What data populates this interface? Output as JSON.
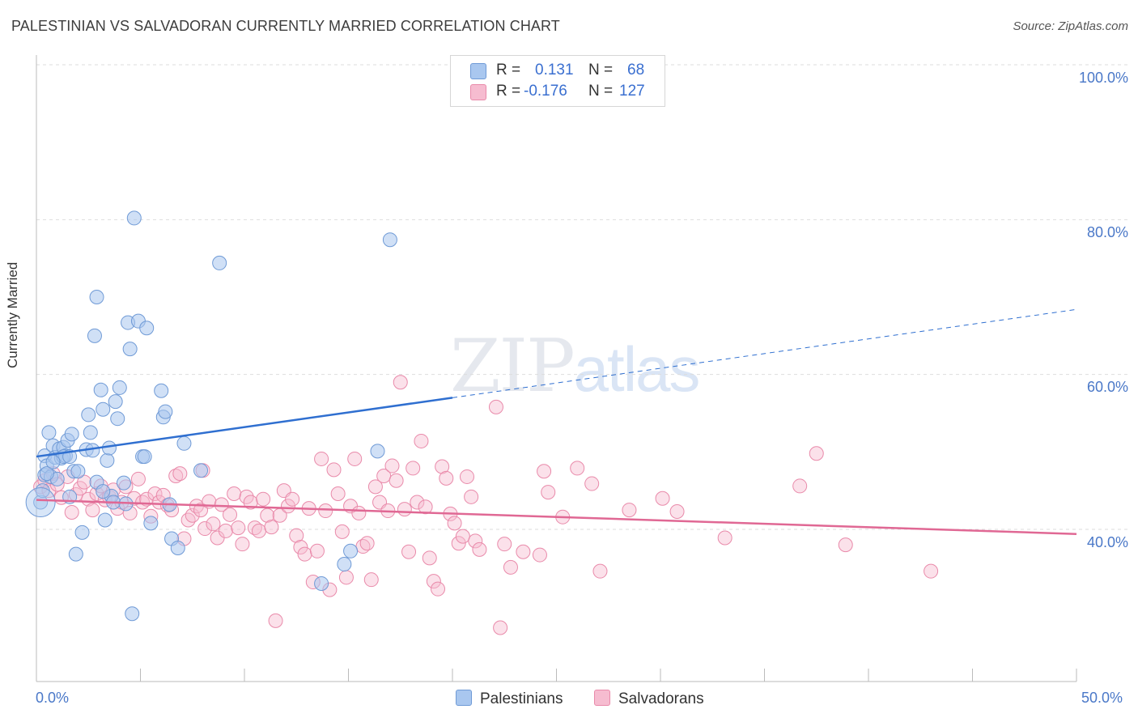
{
  "title": "PALESTINIAN VS SALVADORAN CURRENTLY MARRIED CORRELATION CHART",
  "source": "Source: ZipAtlas.com",
  "watermark": {
    "zip": "ZIP",
    "atlas": "atlas"
  },
  "legend": {
    "rows": [
      {
        "r_label": "R =",
        "r_value": "0.131",
        "n_label": "N =",
        "n_value": "68"
      },
      {
        "r_label": "R =",
        "r_value": "-0.176",
        "n_label": "N =",
        "n_value": "127"
      }
    ]
  },
  "bottom_legend": {
    "series1": "Palestinians",
    "series2": "Salvadorans"
  },
  "colors": {
    "series1_fill": "#a9c7ef",
    "series1_stroke": "#6f9ad6",
    "series1_line": "#2f6fd0",
    "series2_fill": "#f6bcd0",
    "series2_stroke": "#e98aaa",
    "series2_line": "#e06894",
    "tick_text": "#4a78c8",
    "grid": "#dddddd"
  },
  "chart_data": {
    "type": "scatter",
    "title": "PALESTINIAN VS SALVADORAN CURRENTLY MARRIED CORRELATION CHART",
    "ylabel": "Currently Married",
    "xlabel": "",
    "xlim": [
      0,
      50
    ],
    "ylim": [
      20,
      102
    ],
    "x_tick_labels": [
      "0.0%",
      "50.0%"
    ],
    "y_ticks": [
      40,
      60,
      80,
      100
    ],
    "y_tick_labels": [
      "40.0%",
      "60.0%",
      "80.0%",
      "100.0%"
    ],
    "grid": "horizontal dashed",
    "legend_position": "top-center",
    "series": [
      {
        "name": "Palestinians",
        "stats": {
          "R": 0.131,
          "N": 68
        },
        "trend": {
          "x0": 0,
          "y0": 49.4,
          "x1": 50,
          "y1": 68.4,
          "solid_until": 20
        },
        "points": [
          [
            0.2,
            43.5
          ],
          [
            0.3,
            45
          ],
          [
            0.4,
            49.5
          ],
          [
            0.4,
            47
          ],
          [
            0.5,
            48.2
          ],
          [
            0.6,
            52.5
          ],
          [
            0.7,
            46.8
          ],
          [
            0.8,
            50.8
          ],
          [
            0.9,
            49.3
          ],
          [
            1.0,
            46.5
          ],
          [
            1.1,
            50.4
          ],
          [
            1.2,
            49.2
          ],
          [
            1.3,
            50.6
          ],
          [
            1.4,
            49.5
          ],
          [
            1.5,
            51.5
          ],
          [
            1.6,
            44.2
          ],
          [
            1.7,
            52.3
          ],
          [
            1.8,
            47.5
          ],
          [
            1.9,
            36.8
          ],
          [
            2.0,
            47.5
          ],
          [
            2.2,
            39.6
          ],
          [
            2.4,
            50.3
          ],
          [
            2.5,
            54.8
          ],
          [
            2.6,
            52.5
          ],
          [
            2.7,
            50.2
          ],
          [
            2.8,
            65
          ],
          [
            2.9,
            70
          ],
          [
            3.1,
            58
          ],
          [
            3.2,
            55.5
          ],
          [
            3.3,
            41.2
          ],
          [
            3.4,
            48.9
          ],
          [
            3.5,
            50.5
          ],
          [
            3.6,
            44.3
          ],
          [
            3.7,
            43.5
          ],
          [
            3.8,
            56.5
          ],
          [
            3.9,
            54.3
          ],
          [
            4.0,
            58.3
          ],
          [
            4.2,
            46
          ],
          [
            4.4,
            66.7
          ],
          [
            4.5,
            63.3
          ],
          [
            4.6,
            29.1
          ],
          [
            4.7,
            80.2
          ],
          [
            4.9,
            66.9
          ],
          [
            5.1,
            49.4
          ],
          [
            5.2,
            49.4
          ],
          [
            5.3,
            66
          ],
          [
            5.5,
            40.8
          ],
          [
            6.0,
            57.9
          ],
          [
            6.1,
            54.5
          ],
          [
            6.2,
            55.2
          ],
          [
            6.4,
            43.2
          ],
          [
            6.5,
            38.8
          ],
          [
            6.8,
            37.6
          ],
          [
            7.1,
            51.1
          ],
          [
            7.9,
            47.6
          ],
          [
            8.8,
            74.4
          ],
          [
            13.7,
            33
          ],
          [
            14.8,
            35.5
          ],
          [
            15.1,
            37.2
          ],
          [
            16.4,
            50.1
          ],
          [
            17.0,
            77.4
          ],
          [
            0.5,
            47.2
          ],
          [
            1.3,
            49.4
          ],
          [
            2.9,
            46.1
          ],
          [
            4.3,
            43.3
          ],
          [
            0.8,
            48.7
          ],
          [
            1.6,
            49.4
          ],
          [
            3.2,
            44.9
          ]
        ]
      },
      {
        "name": "Salvadorans",
        "stats": {
          "R": -0.176,
          "N": 127
        },
        "trend": {
          "x0": 0,
          "y0": 43.8,
          "x1": 50,
          "y1": 39.4
        },
        "points": [
          [
            0.2,
            45.5
          ],
          [
            0.4,
            46.3
          ],
          [
            0.6,
            45
          ],
          [
            0.8,
            47.2
          ],
          [
            1.0,
            45.8
          ],
          [
            1.2,
            44.1
          ],
          [
            1.5,
            46.8
          ],
          [
            1.7,
            42.2
          ],
          [
            1.9,
            44.5
          ],
          [
            2.1,
            45.3
          ],
          [
            2.3,
            46.1
          ],
          [
            2.5,
            43.9
          ],
          [
            2.7,
            42.5
          ],
          [
            2.9,
            44.6
          ],
          [
            3.1,
            45.6
          ],
          [
            3.3,
            43.8
          ],
          [
            3.5,
            44.2
          ],
          [
            3.7,
            45.1
          ],
          [
            3.9,
            42.7
          ],
          [
            4.1,
            43.5
          ],
          [
            4.3,
            45.5
          ],
          [
            4.5,
            42.1
          ],
          [
            4.7,
            44
          ],
          [
            4.9,
            46.5
          ],
          [
            5.1,
            43.5
          ],
          [
            5.3,
            43.9
          ],
          [
            5.5,
            41.7
          ],
          [
            5.7,
            44.6
          ],
          [
            5.9,
            43.5
          ],
          [
            6.1,
            44.4
          ],
          [
            6.3,
            43.1
          ],
          [
            6.5,
            42.5
          ],
          [
            6.7,
            46.9
          ],
          [
            6.9,
            47.2
          ],
          [
            7.1,
            38.8
          ],
          [
            7.3,
            41.2
          ],
          [
            7.5,
            41.8
          ],
          [
            7.7,
            43
          ],
          [
            7.9,
            42.5
          ],
          [
            8.1,
            40.1
          ],
          [
            8.3,
            43.6
          ],
          [
            8.5,
            40.7
          ],
          [
            8.7,
            38.9
          ],
          [
            8.9,
            43.2
          ],
          [
            9.1,
            39.8
          ],
          [
            9.3,
            41.9
          ],
          [
            9.5,
            44.6
          ],
          [
            9.7,
            40.2
          ],
          [
            9.9,
            38.1
          ],
          [
            10.1,
            44.2
          ],
          [
            10.3,
            43.5
          ],
          [
            10.5,
            40.2
          ],
          [
            10.7,
            39.8
          ],
          [
            10.9,
            43.9
          ],
          [
            11.1,
            41.8
          ],
          [
            11.3,
            40.3
          ],
          [
            11.5,
            28.2
          ],
          [
            11.7,
            41.8
          ],
          [
            11.9,
            45
          ],
          [
            12.1,
            43
          ],
          [
            12.3,
            43.9
          ],
          [
            12.5,
            39.2
          ],
          [
            12.7,
            37.7
          ],
          [
            12.9,
            36.8
          ],
          [
            13.1,
            42.7
          ],
          [
            13.3,
            33.2
          ],
          [
            13.5,
            37.2
          ],
          [
            13.7,
            49.1
          ],
          [
            13.9,
            42.4
          ],
          [
            14.1,
            32.2
          ],
          [
            14.3,
            47.7
          ],
          [
            14.5,
            44.6
          ],
          [
            14.7,
            39.7
          ],
          [
            14.9,
            33.8
          ],
          [
            15.1,
            43
          ],
          [
            15.3,
            49.1
          ],
          [
            15.5,
            42.1
          ],
          [
            15.7,
            37.8
          ],
          [
            15.9,
            38.2
          ],
          [
            16.1,
            33.5
          ],
          [
            16.3,
            45.5
          ],
          [
            16.5,
            43.5
          ],
          [
            16.7,
            46.9
          ],
          [
            16.9,
            42.4
          ],
          [
            17.1,
            48.2
          ],
          [
            17.3,
            46.3
          ],
          [
            17.5,
            59
          ],
          [
            17.7,
            42.6
          ],
          [
            17.9,
            37.1
          ],
          [
            18.1,
            47.9
          ],
          [
            18.3,
            43.5
          ],
          [
            18.5,
            51.4
          ],
          [
            18.7,
            42.9
          ],
          [
            18.9,
            36.3
          ],
          [
            19.1,
            33.3
          ],
          [
            19.3,
            32.3
          ],
          [
            19.5,
            48.1
          ],
          [
            19.7,
            46.6
          ],
          [
            19.9,
            42
          ],
          [
            20.1,
            40.8
          ],
          [
            20.3,
            38.2
          ],
          [
            20.5,
            39.1
          ],
          [
            20.7,
            46.8
          ],
          [
            20.9,
            44.2
          ],
          [
            21.1,
            38.5
          ],
          [
            21.3,
            37.4
          ],
          [
            22.1,
            55.8
          ],
          [
            22.3,
            27.3
          ],
          [
            22.5,
            38.1
          ],
          [
            22.8,
            35.1
          ],
          [
            23.4,
            37.1
          ],
          [
            24.2,
            36.7
          ],
          [
            24.4,
            47.5
          ],
          [
            24.6,
            44.8
          ],
          [
            25.3,
            41.6
          ],
          [
            26.0,
            47.9
          ],
          [
            26.7,
            45.9
          ],
          [
            27.1,
            34.6
          ],
          [
            28.5,
            42.5
          ],
          [
            30.1,
            44
          ],
          [
            30.8,
            42.3
          ],
          [
            33.1,
            38.9
          ],
          [
            36.7,
            45.6
          ],
          [
            37.5,
            49.8
          ],
          [
            38.9,
            38
          ],
          [
            43.0,
            34.6
          ],
          [
            8.0,
            47.6
          ]
        ]
      }
    ]
  }
}
